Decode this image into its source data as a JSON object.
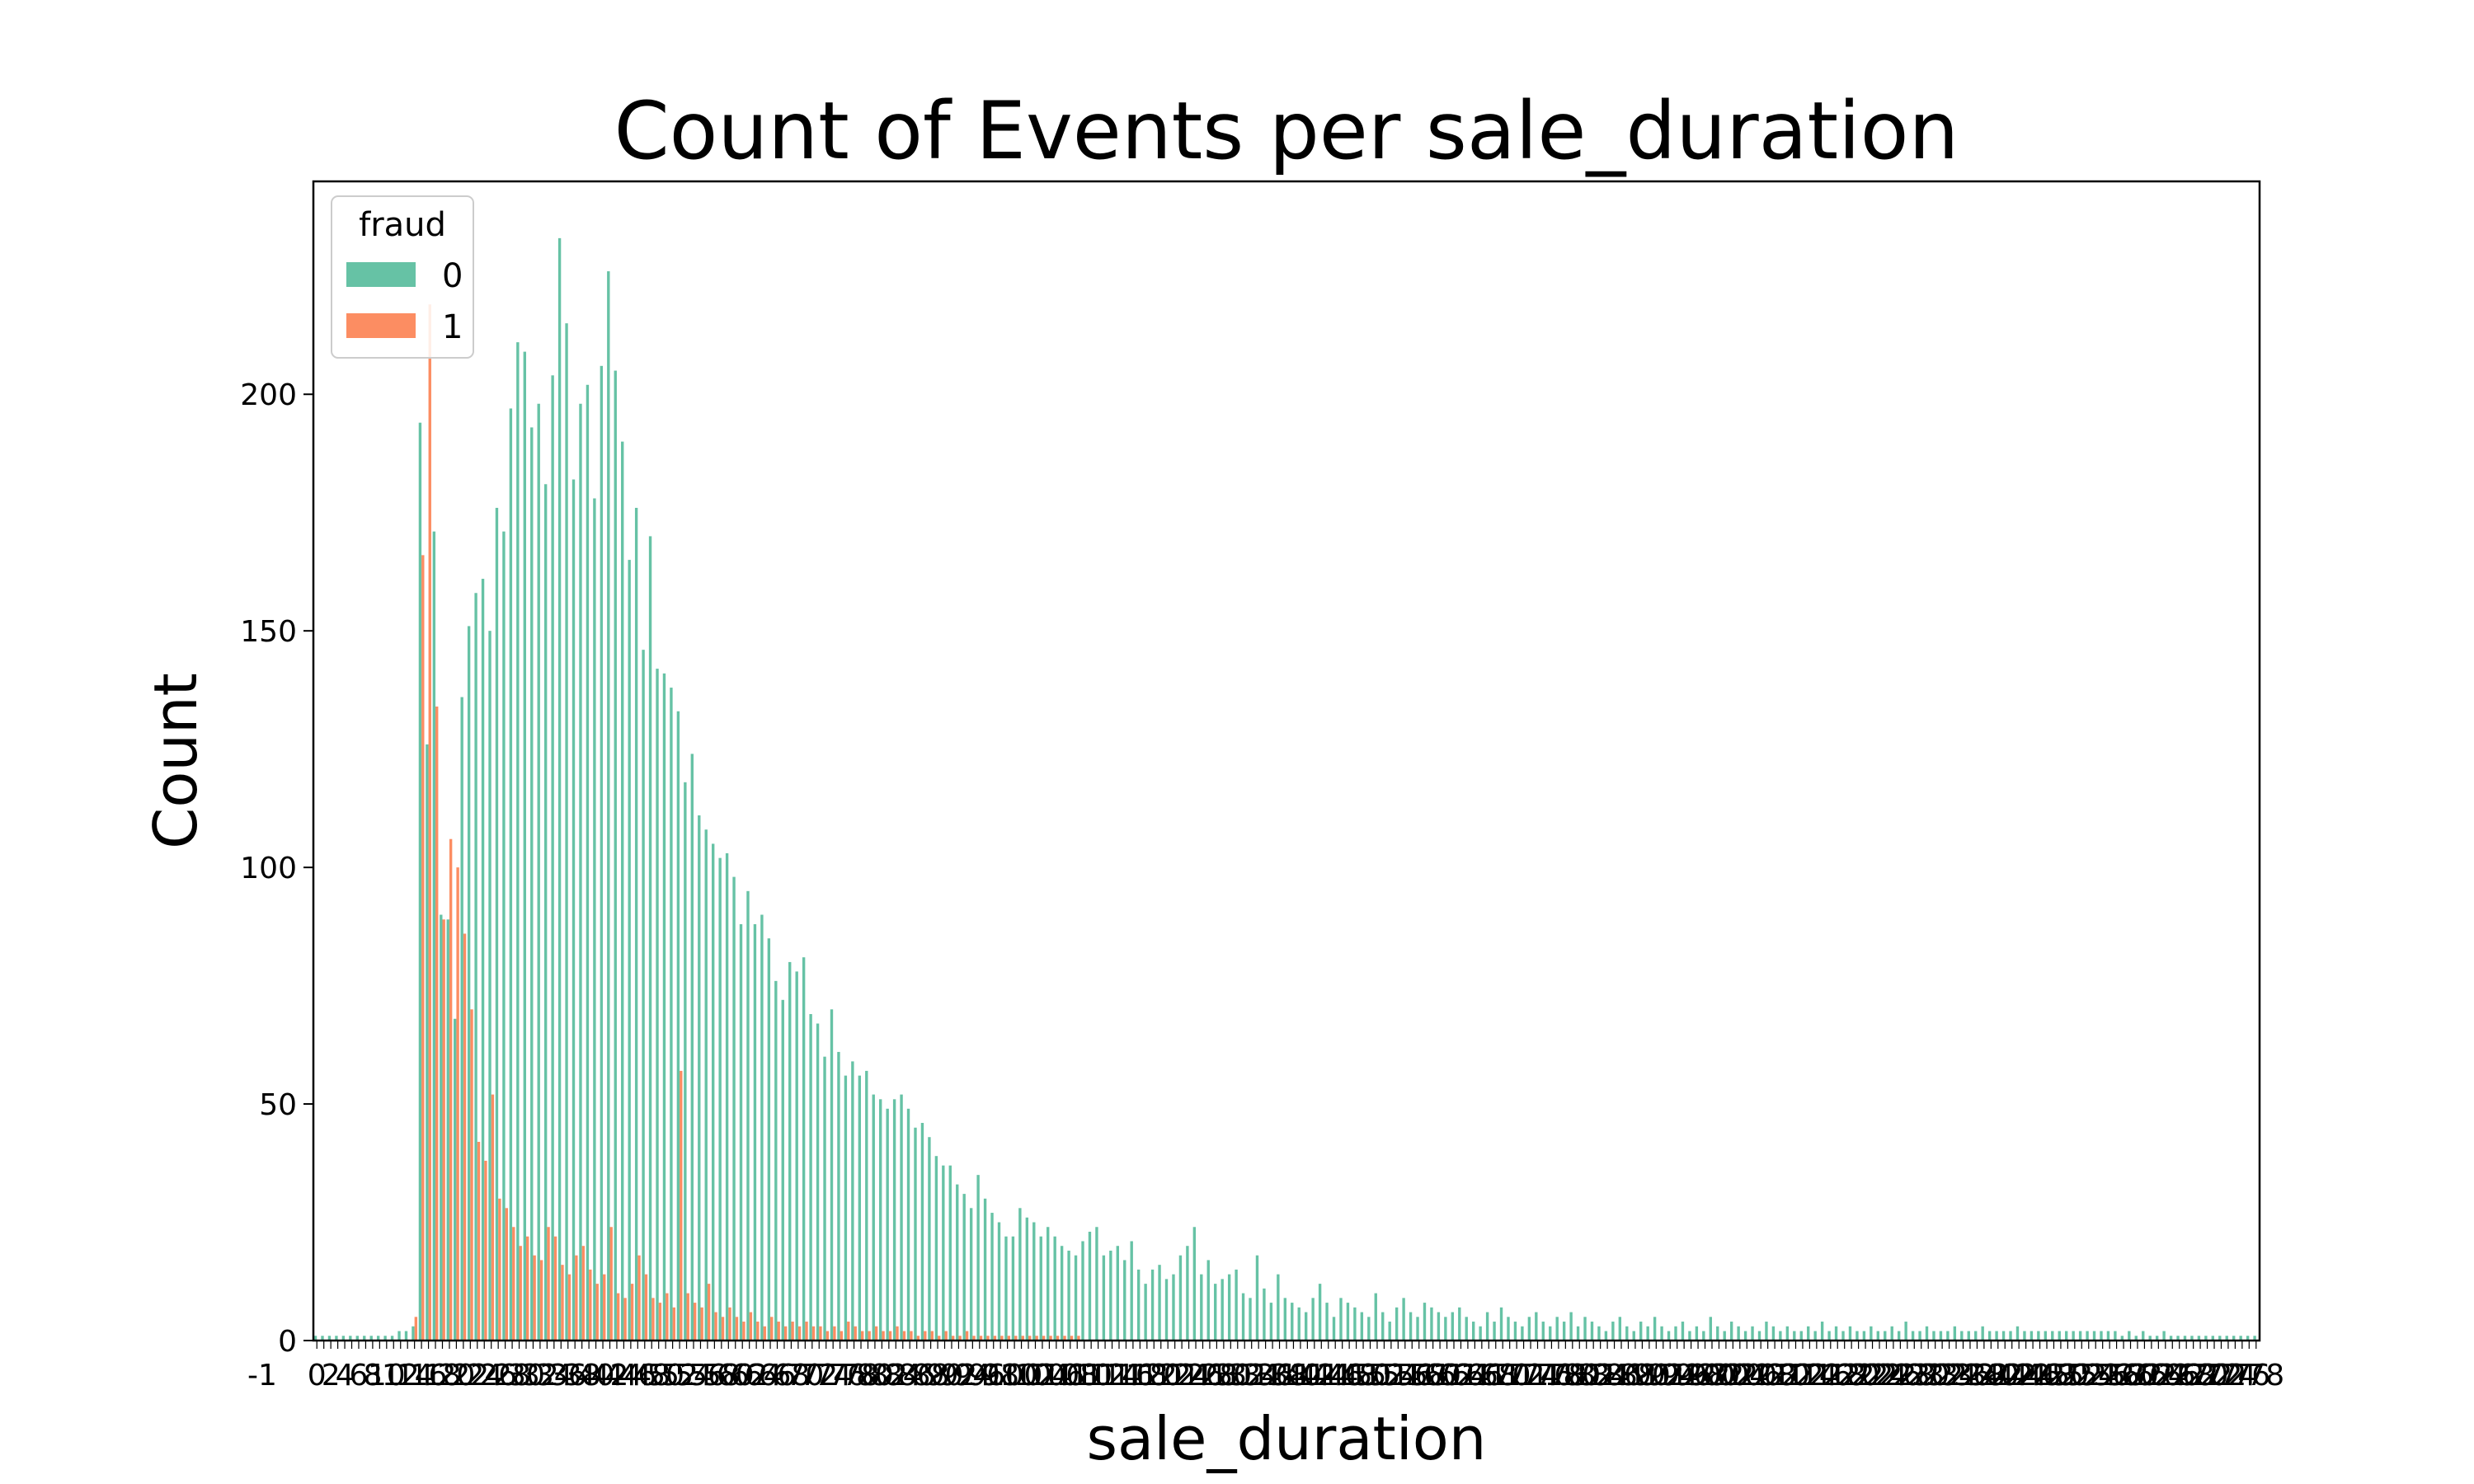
{
  "chart_data": {
    "type": "bar",
    "title": "Count of Events per sale_duration",
    "xlabel": "sale_duration",
    "ylabel": "Count",
    "ylim": [
      0,
      245
    ],
    "yticks": [
      0,
      50,
      100,
      150,
      200
    ],
    "grid": false,
    "legend": {
      "title": "fraud",
      "placement": "top-left",
      "entries": [
        "0",
        "1"
      ]
    },
    "x_tick_labels_note": "-1",
    "series": [
      {
        "name": "0",
        "color": "#66c2a5",
        "values": [
          1,
          1,
          1,
          1,
          1,
          1,
          1,
          1,
          1,
          1,
          1,
          1,
          2,
          2,
          3,
          194,
          126,
          171,
          90,
          89,
          68,
          136,
          151,
          158,
          161,
          150,
          176,
          171,
          197,
          211,
          209,
          193,
          198,
          181,
          204,
          233,
          215,
          182,
          198,
          202,
          178,
          206,
          226,
          205,
          190,
          165,
          176,
          146,
          170,
          142,
          141,
          138,
          133,
          118,
          124,
          111,
          108,
          105,
          102,
          103,
          98,
          88,
          95,
          88,
          90,
          85,
          76,
          72,
          80,
          78,
          81,
          69,
          67,
          60,
          70,
          61,
          56,
          59,
          56,
          57,
          52,
          51,
          49,
          51,
          52,
          49,
          45,
          46,
          43,
          39,
          37,
          37,
          33,
          31,
          28,
          35,
          30,
          27,
          25,
          22,
          22,
          28,
          26,
          25,
          22,
          24,
          22,
          20,
          19,
          18,
          21,
          23,
          24,
          18,
          19,
          20,
          17,
          21,
          15,
          12,
          15,
          16,
          13,
          14,
          18,
          20,
          24,
          14,
          17,
          12,
          13,
          14,
          15,
          10,
          9,
          18,
          11,
          8,
          14,
          9,
          8,
          7,
          6,
          9,
          12,
          8,
          5,
          9,
          8,
          7,
          6,
          5,
          10,
          6,
          4,
          7,
          9,
          6,
          5,
          8,
          7,
          6,
          5,
          6,
          7,
          5,
          4,
          3,
          6,
          4,
          7,
          5,
          4,
          3,
          5,
          6,
          4,
          3,
          5,
          4,
          6,
          3,
          5,
          4,
          3,
          2,
          4,
          5,
          3,
          2,
          4,
          3,
          5,
          3,
          2,
          3,
          4,
          2,
          3,
          2,
          5,
          3,
          2,
          4,
          3,
          2,
          3,
          2,
          4,
          3,
          2,
          3,
          2,
          2,
          3,
          2,
          4,
          2,
          3,
          2,
          3,
          2,
          2,
          3,
          2,
          2,
          3,
          2,
          4,
          2,
          2,
          3,
          2,
          2,
          2,
          3,
          2,
          2,
          2,
          3,
          2,
          2,
          2,
          2,
          3,
          2,
          2,
          2,
          2,
          2,
          2,
          2,
          2,
          2,
          2,
          2,
          2,
          2,
          2,
          1,
          2,
          1,
          2,
          1,
          1,
          2,
          1,
          1,
          1,
          1,
          1,
          1,
          1,
          1,
          1,
          1,
          1,
          1,
          1
        ]
      },
      {
        "name": "1",
        "color": "#fc8d62",
        "values": [
          0,
          0,
          0,
          0,
          0,
          0,
          0,
          0,
          0,
          0,
          0,
          0,
          0,
          0,
          5,
          166,
          219,
          134,
          89,
          106,
          100,
          86,
          70,
          42,
          38,
          52,
          30,
          28,
          24,
          20,
          22,
          18,
          17,
          24,
          22,
          16,
          14,
          18,
          20,
          15,
          12,
          14,
          24,
          10,
          9,
          12,
          18,
          14,
          9,
          8,
          10,
          7,
          57,
          10,
          8,
          7,
          12,
          6,
          5,
          7,
          5,
          4,
          6,
          4,
          3,
          5,
          4,
          3,
          4,
          3,
          4,
          3,
          3,
          2,
          3,
          2,
          4,
          3,
          2,
          2,
          3,
          2,
          2,
          3,
          2,
          2,
          1,
          2,
          2,
          1,
          2,
          1,
          1,
          2,
          1,
          1,
          1,
          1,
          1,
          1,
          1,
          1,
          1,
          1,
          1,
          1,
          1,
          1,
          1,
          1,
          0,
          0,
          0,
          0,
          0,
          0,
          0,
          0,
          0,
          0,
          0,
          0,
          0,
          0,
          0,
          0,
          0,
          0,
          0,
          0,
          0,
          0,
          0,
          0,
          0,
          0,
          0,
          0,
          0,
          0,
          0,
          0,
          0,
          0,
          0,
          0,
          0,
          0,
          0,
          0,
          0,
          0,
          0,
          0,
          0,
          0,
          0,
          0,
          0,
          0,
          0,
          0,
          0,
          0,
          0,
          0,
          0,
          0,
          0,
          0,
          0,
          0,
          0,
          0,
          0,
          0,
          0,
          0,
          0,
          0,
          0,
          0,
          0,
          0,
          0,
          0,
          0,
          0,
          0,
          0,
          0,
          0,
          0,
          0,
          0,
          0,
          0,
          0,
          0,
          0,
          0,
          0,
          0,
          0,
          0,
          0,
          0,
          0,
          0,
          0,
          0,
          0,
          0,
          0,
          0,
          0,
          0,
          0,
          0,
          0,
          0,
          0,
          0,
          0,
          0,
          0,
          0,
          0,
          0,
          0,
          0,
          0,
          0,
          0,
          0,
          0,
          0,
          0,
          0,
          0,
          0,
          0,
          0,
          0,
          0,
          0,
          0,
          0,
          0,
          0,
          0,
          0,
          0,
          0,
          0,
          0,
          0,
          0,
          0,
          0,
          0,
          0,
          0,
          0,
          0,
          0,
          0,
          0
        ]
      }
    ]
  }
}
